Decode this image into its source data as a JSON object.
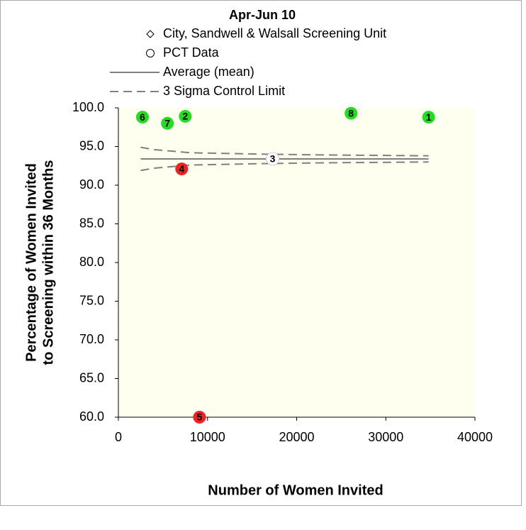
{
  "chart_data": {
    "type": "scatter",
    "title": "Apr-Jun 10",
    "xlabel": "Number of Women Invited",
    "ylabel": [
      "Percentage of Women Invited",
      "to Screening within 36 Months"
    ],
    "xlim": [
      0,
      40000
    ],
    "xticks": [
      0,
      10000,
      20000,
      30000,
      40000
    ],
    "ylim": [
      60,
      100
    ],
    "yticks": [
      {
        "value": 60,
        "label": "60.0"
      },
      {
        "value": 65,
        "label": "65.0"
      },
      {
        "value": 70,
        "label": "70.0"
      },
      {
        "value": 75,
        "label": "75.0"
      },
      {
        "value": 80,
        "label": "80.0"
      },
      {
        "value": 85,
        "label": "85.0"
      },
      {
        "value": 90,
        "label": "90.0"
      },
      {
        "value": 95,
        "label": "95.0"
      },
      {
        "value": 100,
        "label": "100.0"
      }
    ],
    "legend": [
      {
        "label": "City, Sandwell & Walsall Screening Unit",
        "symbol": "diamond"
      },
      {
        "label": "PCT Data",
        "symbol": "circle"
      },
      {
        "label": "Average (mean)",
        "symbol": "line"
      },
      {
        "label": "3 Sigma Control Limit",
        "symbol": "dash"
      }
    ],
    "points": {
      "labels": [
        "6",
        "7",
        "2",
        "8",
        "1",
        "4",
        "5",
        "3"
      ],
      "x": [
        2700,
        5500,
        7500,
        26100,
        34800,
        7100,
        9100,
        17300
      ],
      "values": [
        98.8,
        98.0,
        98.9,
        99.3,
        98.8,
        92.1,
        60.0,
        93.4
      ],
      "colors": [
        "#22dd22",
        "#22dd22",
        "#22dd22",
        "#22dd22",
        "#22dd22",
        "#ee2222",
        "#ee2222",
        "#ffffff"
      ]
    },
    "lines": [
      {
        "name": "Average (mean)",
        "color": "#808080",
        "dash": false,
        "x": [
          2500,
          34800
        ],
        "values": [
          93.4,
          93.4
        ]
      },
      {
        "name": "3 Sigma Control Limit",
        "color": "#808080",
        "dash": true,
        "x": [
          2500,
          4000,
          6000,
          8000,
          12000,
          17000,
          24000,
          34800
        ],
        "values": [
          94.9,
          94.6,
          94.4,
          94.2,
          94.1,
          94.0,
          93.9,
          93.8
        ]
      },
      {
        "name": "3 Sigma Control Limit",
        "color": "#808080",
        "dash": true,
        "x": [
          2500,
          4000,
          6000,
          8000,
          12000,
          17000,
          24000,
          34800
        ],
        "values": [
          91.9,
          92.2,
          92.4,
          92.6,
          92.7,
          92.8,
          92.9,
          93.0
        ]
      }
    ]
  }
}
